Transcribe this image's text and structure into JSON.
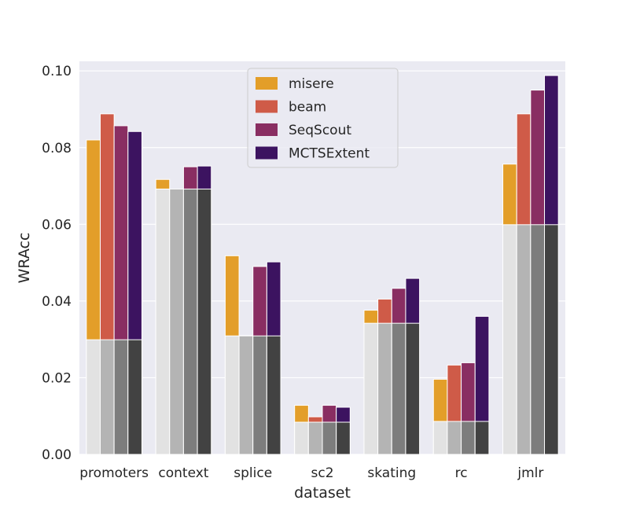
{
  "chart_data": {
    "type": "bar",
    "xlabel": "dataset",
    "ylabel": "WRAcc",
    "ylim": [
      0,
      0.1025
    ],
    "yticks": [
      "0.00",
      "0.02",
      "0.04",
      "0.06",
      "0.08",
      "0.10"
    ],
    "ytick_values": [
      0,
      0.02,
      0.04,
      0.06,
      0.08,
      0.1
    ],
    "grid": true,
    "legend_position": "top-center",
    "categories": [
      "promoters",
      "context",
      "splice",
      "sc2",
      "skating",
      "rc",
      "jmlr"
    ],
    "series": [
      {
        "name": "misere",
        "color": "#e39e29",
        "values": [
          0.082,
          0.0717,
          0.0518,
          0.0128,
          0.0376,
          0.0196,
          0.0757
        ]
      },
      {
        "name": "beam",
        "color": "#cf5b48",
        "values": [
          0.0888,
          0.069,
          0.031,
          0.0098,
          0.0405,
          0.0233,
          0.0888
        ]
      },
      {
        "name": "SeqScout",
        "color": "#892e62",
        "values": [
          0.0857,
          0.075,
          0.049,
          0.0128,
          0.0433,
          0.0239,
          0.095
        ]
      },
      {
        "name": "MCTSExtent",
        "color": "#3c1360",
        "values": [
          0.0842,
          0.0752,
          0.0502,
          0.0123,
          0.0459,
          0.036,
          0.0988
        ]
      }
    ],
    "baseline": {
      "values": [
        0.0299,
        0.0692,
        0.0309,
        0.0084,
        0.0342,
        0.0086,
        0.0599
      ],
      "colors": [
        "#e2e2e2",
        "#b4b4b4",
        "#7d7d7d",
        "#424242"
      ]
    }
  },
  "style": {
    "plot_background": "#eaeaf2",
    "grid_color": "#ffffff",
    "legend_background": "#eaeaf2",
    "legend_border": "#cccccc"
  }
}
